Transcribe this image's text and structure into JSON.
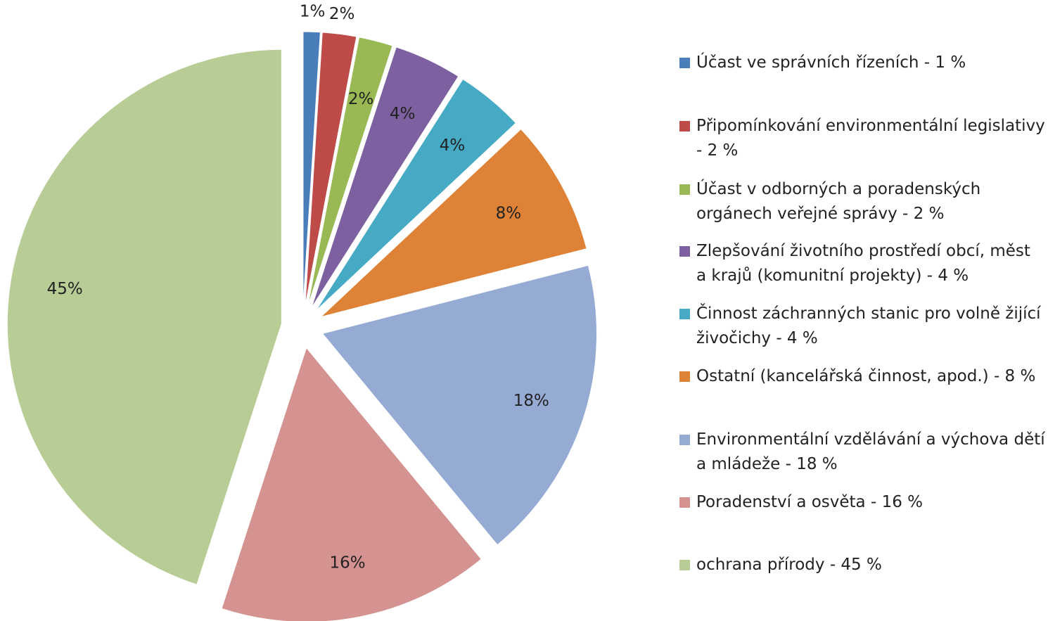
{
  "chart_data": {
    "type": "pie",
    "categories": [
      "Účast ve správních řízeních - 1 %",
      "Připomínkování environmentální legislativy - 2 %",
      "Účast v odborných a poradenských orgánech veřejné správy - 2 %",
      "Zlepšování životního prostředí obcí, měst a krajů (komunitní projekty) - 4 %",
      "Činnost záchranných stanic pro volně žijící živočichy - 4 %",
      "Ostatní (kancelářská činnost, apod.) - 8 %",
      "Environmentální vzdělávání a výchova dětí a mládeže - 18 %",
      "Poradenství a osvěta - 16 %",
      "ochrana přírody - 45 %"
    ],
    "values": [
      1,
      2,
      2,
      4,
      4,
      8,
      18,
      16,
      45
    ],
    "value_labels": [
      "1%",
      "2%",
      "2%",
      "4%",
      "4%",
      "8%",
      "18%",
      "16%",
      "45%"
    ],
    "colors": [
      "#4a7ebb",
      "#be4b48",
      "#98b954",
      "#7d60a0",
      "#46aac5",
      "#dd8237",
      "#95abd4",
      "#d49290",
      "#b7cd95"
    ],
    "legend": "right"
  }
}
